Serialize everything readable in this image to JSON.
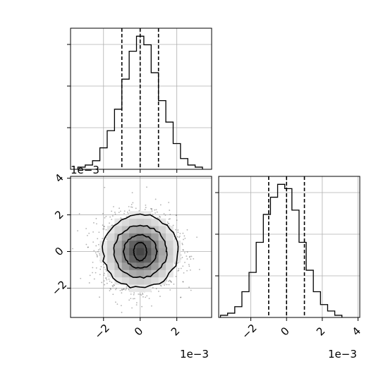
{
  "chart_data": {
    "type": "corner",
    "offset_text": "1e−3",
    "offset_text_top_left": "1e−3",
    "tick_values": [
      -2,
      0,
      2
    ],
    "ytick_values_2d": [
      -2,
      0,
      2,
      4
    ],
    "xtick_values_right": [
      -2,
      0,
      2,
      4
    ],
    "grid": true,
    "panels": [
      {
        "name": "marginal-param-1",
        "type": "histogram-step",
        "xlim": [
          -3.8,
          3.9
        ],
        "bin_edges": [
          -3.4,
          -3.0,
          -2.6,
          -2.2,
          -1.8,
          -1.4,
          -1.0,
          -0.6,
          -0.2,
          0.2,
          0.6,
          1.0,
          1.4,
          1.8,
          2.2,
          2.6,
          3.0,
          3.4
        ],
        "counts": [
          1,
          2,
          4,
          10,
          18,
          28,
          42,
          55,
          62,
          58,
          45,
          32,
          22,
          12,
          5,
          2,
          1
        ],
        "quantiles": [
          -1.0,
          0.0,
          1.0
        ]
      },
      {
        "name": "marginal-param-2",
        "type": "histogram-step",
        "xlim": [
          -3.8,
          4.1
        ],
        "bin_edges": [
          -3.7,
          -3.3,
          -2.9,
          -2.5,
          -2.1,
          -1.7,
          -1.3,
          -0.9,
          -0.5,
          -0.1,
          0.3,
          0.7,
          1.1,
          1.5,
          1.9,
          2.3,
          2.7,
          3.1
        ],
        "counts": [
          1,
          2,
          5,
          12,
          21,
          35,
          48,
          56,
          62,
          60,
          50,
          35,
          22,
          12,
          6,
          3,
          1
        ],
        "quantiles": [
          -1.0,
          0.0,
          1.0
        ]
      },
      {
        "name": "joint-param-1-param-2",
        "type": "2d-density",
        "xlim": [
          -3.8,
          3.9
        ],
        "ylim": [
          -3.6,
          4.1
        ],
        "center": [
          0,
          0
        ],
        "contour_levels": [
          {
            "rx": 2.05,
            "ry": 2.0
          },
          {
            "rx": 1.45,
            "ry": 1.42
          },
          {
            "rx": 0.9,
            "ry": 0.9
          },
          {
            "rx": 0.35,
            "ry": 0.5
          }
        ]
      }
    ]
  }
}
